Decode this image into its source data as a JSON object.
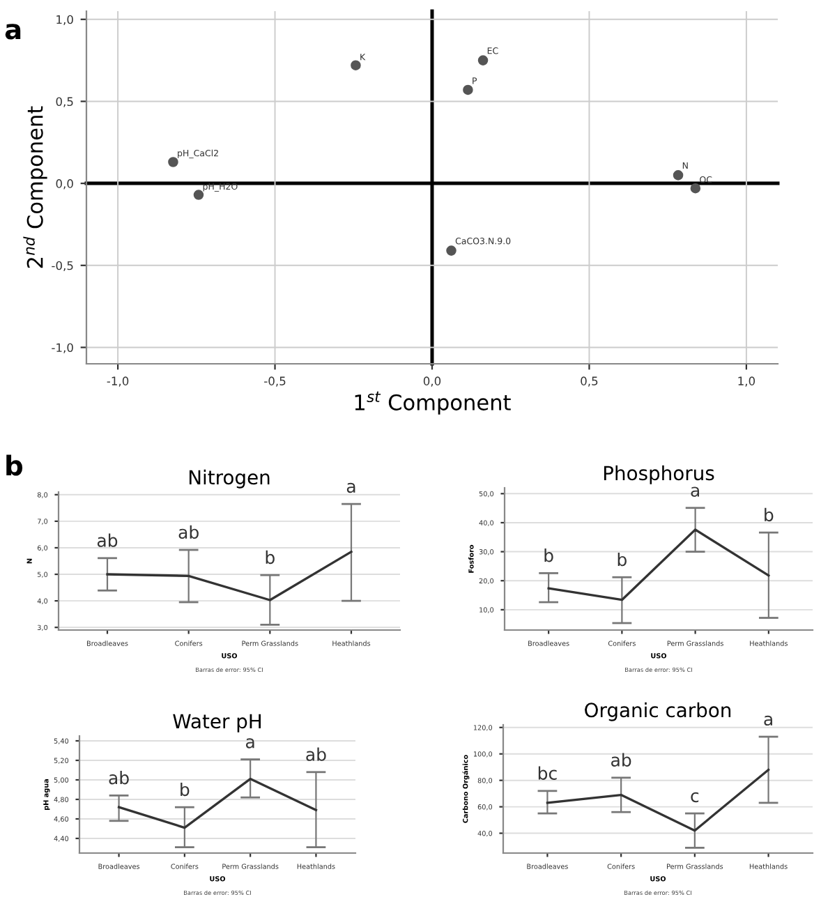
{
  "chart_data": [
    {
      "type": "scatter",
      "xlabel": "1$^{st}$ Component",
      "ylabel": "2$^{nd}$ Component",
      "xlim": [
        -1.1,
        1.1
      ],
      "ylim": [
        -1.1,
        1.05
      ],
      "xticks": [
        {
          "value": -1,
          "label": "-1,0"
        },
        {
          "value": -0.5,
          "label": "-0,5"
        },
        {
          "value": 0,
          "label": "0,0"
        },
        {
          "value": 0.5,
          "label": "0,5"
        },
        {
          "value": 1,
          "label": "1,0"
        }
      ],
      "yticks": [
        {
          "value": -1,
          "label": "-1,0"
        },
        {
          "value": -0.5,
          "label": "-0,5"
        },
        {
          "value": 0,
          "label": "0,0"
        },
        {
          "value": 0.5,
          "label": "0,5"
        },
        {
          "value": 1,
          "label": "1,0"
        }
      ],
      "x": [
        -0.243,
        0.162,
        0.114,
        -0.824,
        -0.743,
        0.783,
        0.838,
        0.061
      ],
      "series": [
        {
          "color": "#555555",
          "values": [
            0.72,
            0.75,
            0.57,
            0.13,
            -0.07,
            0.05,
            -0.03,
            -0.41
          ]
        }
      ],
      "marker": "circle",
      "grid": true,
      "annotations": [
        "a",
        {
          "text": "K",
          "x": -0.243,
          "y": 0.716
        },
        {
          "text": "EC",
          "x": 0.162,
          "y": 0.754
        },
        {
          "text": "P",
          "x": 0.114,
          "y": 0.571
        },
        {
          "text": "pH_CaCl2",
          "x": -0.824,
          "y": 0.13
        },
        {
          "text": "pH_H2O",
          "x": -0.743,
          "y": -0.073
        },
        {
          "text": "N",
          "x": 0.783,
          "y": 0.054
        },
        {
          "text": "OC",
          "x": 0.838,
          "y": -0.032
        },
        {
          "text": "CaCO3.N.9.0",
          "x": 0.061,
          "y": -0.406
        }
      ]
    },
    {
      "type": "line",
      "title": "Nitrogen",
      "xlabel": "USO",
      "ylabel": "N",
      "categories": [
        "Broadleaves",
        "Conifers",
        "Perm Grasslands",
        "Heathlands"
      ],
      "ylim": [
        2.9,
        8.1
      ],
      "yticks": [
        {
          "value": 3,
          "label": "3,0"
        },
        {
          "value": 4,
          "label": "4,0"
        },
        {
          "value": 5,
          "label": "5,0"
        },
        {
          "value": 6,
          "label": "6,0"
        },
        {
          "value": 7,
          "label": "7,0"
        },
        {
          "value": 8,
          "label": "8,0"
        }
      ],
      "series": [
        {
          "color": "#333333",
          "values": [
            5.0,
            4.94,
            4.03,
            5.85
          ],
          "errors": [
            [
              4.39,
              5.61
            ],
            [
              3.95,
              5.92
            ],
            [
              3.1,
              4.97
            ],
            [
              4.0,
              7.65
            ]
          ]
        }
      ],
      "grid": "y",
      "marker": "none",
      "annotations": [
        "b",
        "Barras de error: 95% CI",
        "ab",
        "ab",
        "b",
        "a"
      ]
    },
    {
      "type": "line",
      "title": "Phosphorus",
      "xlabel": "USO",
      "ylabel": "Fosforo",
      "categories": [
        "Broadleaves",
        "Conifers",
        "Perm Grasslands",
        "Heathlands"
      ],
      "ylim": [
        3,
        52
      ],
      "yticks": [
        {
          "value": 10,
          "label": "10,0"
        },
        {
          "value": 20,
          "label": "20,0"
        },
        {
          "value": 30,
          "label": "30,0"
        },
        {
          "value": 40,
          "label": "40,0"
        },
        {
          "value": 50,
          "label": "50,0"
        }
      ],
      "series": [
        {
          "color": "#333333",
          "values": [
            17.4,
            13.4,
            37.6,
            21.8
          ],
          "errors": [
            [
              12.6,
              22.6
            ],
            [
              5.4,
              21.2
            ],
            [
              30.0,
              45.1
            ],
            [
              7.2,
              36.6
            ]
          ]
        }
      ],
      "grid": "y",
      "marker": "none",
      "annotations": [
        "Barras de error: 95% CI",
        "b",
        "b",
        "a",
        "b"
      ]
    },
    {
      "type": "line",
      "title": "Water pH",
      "xlabel": "USO",
      "ylabel": "pH agua",
      "categories": [
        "Broadleaves",
        "Conifers",
        "Perm Grasslands",
        "Heathlands"
      ],
      "ylim": [
        4.25,
        5.45
      ],
      "yticks": [
        {
          "value": 4.4,
          "label": "4,40"
        },
        {
          "value": 4.6,
          "label": "4,60"
        },
        {
          "value": 4.8,
          "label": "4,80"
        },
        {
          "value": 5.0,
          "label": "5,00"
        },
        {
          "value": 5.2,
          "label": "5,20"
        },
        {
          "value": 5.4,
          "label": "5,40"
        }
      ],
      "series": [
        {
          "color": "#333333",
          "values": [
            4.72,
            4.51,
            5.01,
            4.69
          ],
          "errors": [
            [
              4.58,
              4.84
            ],
            [
              4.31,
              4.72
            ],
            [
              4.82,
              5.21
            ],
            [
              4.31,
              5.08
            ]
          ]
        }
      ],
      "grid": "y",
      "marker": "none",
      "annotations": [
        "Barras de error: 95% CI",
        "ab",
        "b",
        "a",
        "ab"
      ]
    },
    {
      "type": "line",
      "title": "Organic carbon",
      "xlabel": "USO",
      "ylabel": "Carbono Orgánico",
      "categories": [
        "Broadleaves",
        "Conifers",
        "Perm Grasslands",
        "Heathlands"
      ],
      "ylim": [
        25,
        122
      ],
      "yticks": [
        {
          "value": 40,
          "label": "40,0"
        },
        {
          "value": 60,
          "label": "60,0"
        },
        {
          "value": 80,
          "label": "80,0"
        },
        {
          "value": 100,
          "label": "100,0"
        },
        {
          "value": 120,
          "label": "120,0"
        }
      ],
      "series": [
        {
          "color": "#333333",
          "values": [
            63,
            69,
            42,
            88
          ],
          "errors": [
            [
              55,
              72
            ],
            [
              56,
              82
            ],
            [
              29,
              55
            ],
            [
              63,
              113
            ]
          ]
        }
      ],
      "grid": "y",
      "marker": "none",
      "annotations": [
        "Barras de error: 95% CI",
        "bc",
        "ab",
        "c",
        "a"
      ]
    }
  ]
}
